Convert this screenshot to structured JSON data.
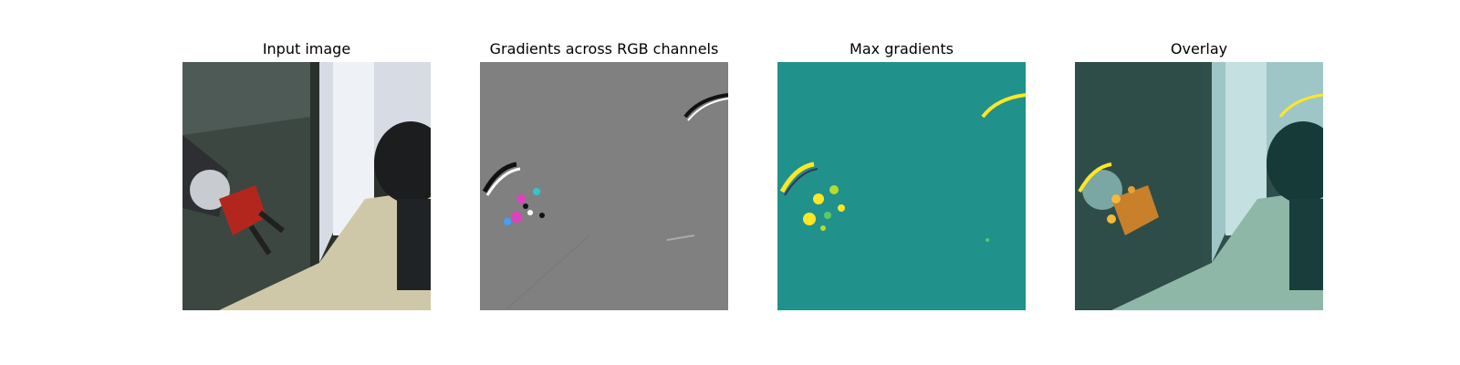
{
  "panels": [
    {
      "title": "Input image",
      "image": "robot-gripper-hallway-photo"
    },
    {
      "title": "Gradients across RGB channels",
      "image": "rgb-gradient-map"
    },
    {
      "title": "Max gradients",
      "image": "max-gradient-heatmap"
    },
    {
      "title": "Overlay",
      "image": "gradient-overlay-photo"
    }
  ],
  "colors": {
    "gradient_background": "#808080",
    "heatmap_background": "#21918c",
    "heatmap_high": "#fde725",
    "gripper_red": "#b3261e"
  }
}
